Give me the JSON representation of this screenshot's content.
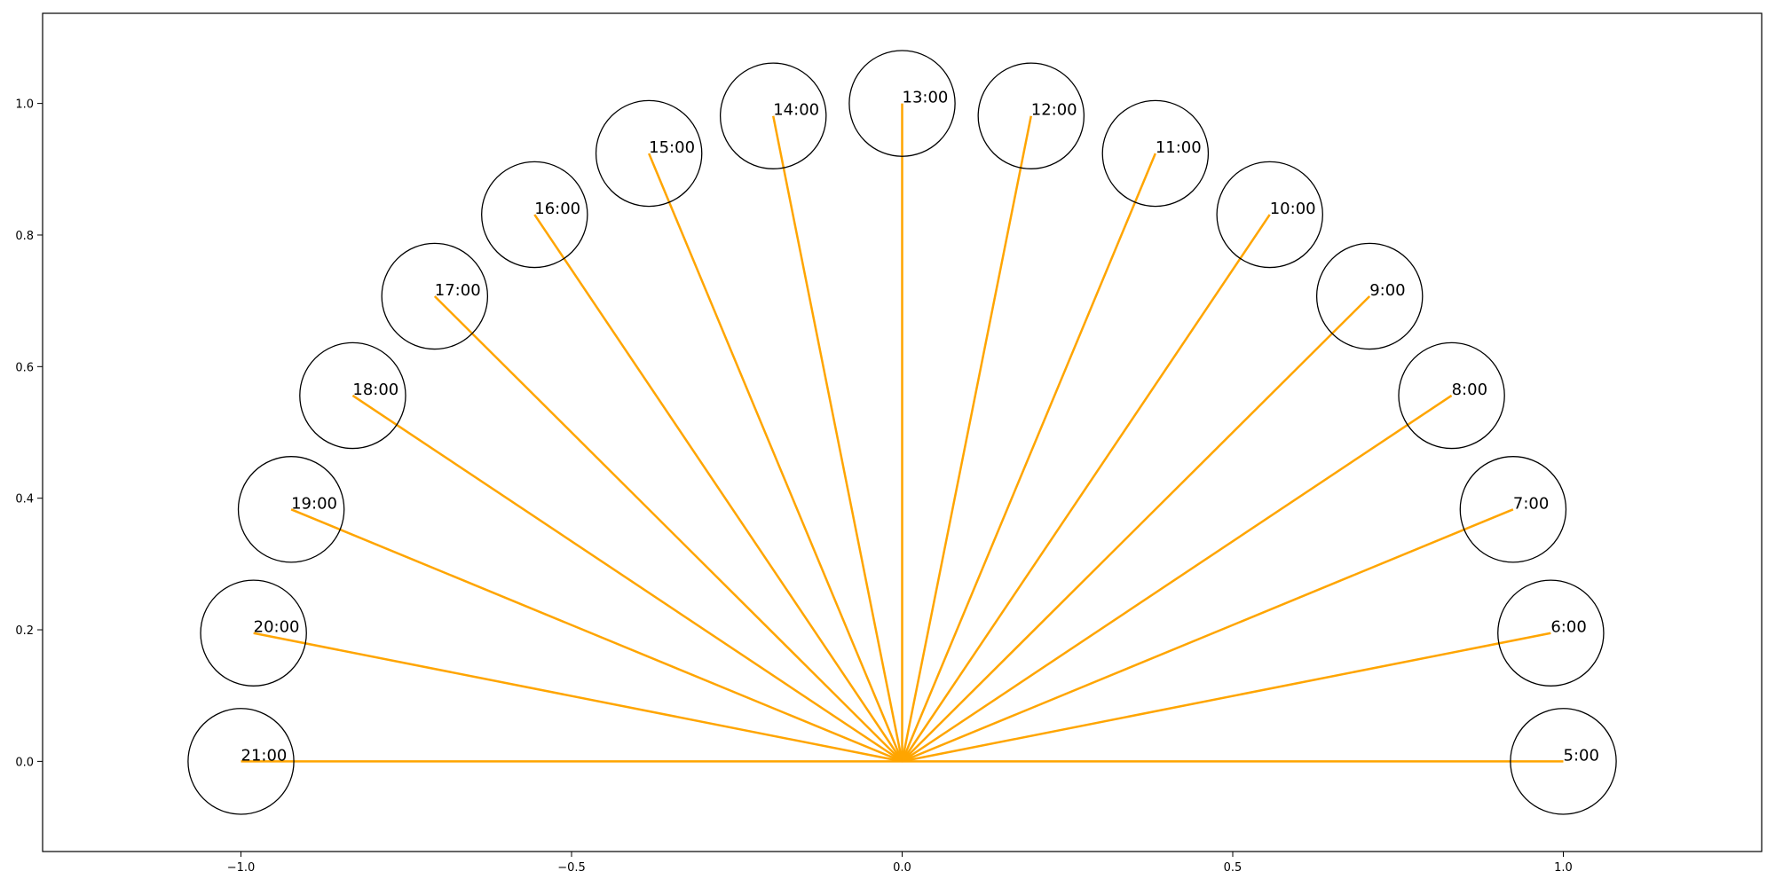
{
  "chart_data": {
    "type": "line",
    "title": "",
    "xlabel": "",
    "ylabel": "",
    "xlim": [
      -1.3,
      1.3
    ],
    "ylim": [
      -0.137,
      1.137
    ],
    "xticks": [
      -1.0,
      -0.5,
      0.0,
      0.5,
      1.0
    ],
    "xtick_labels": [
      "−1.0",
      "−0.5",
      "0.0",
      "0.5",
      "1.0"
    ],
    "yticks": [
      0.0,
      0.2,
      0.4,
      0.6,
      0.8,
      1.0
    ],
    "ytick_labels": [
      "0.0",
      "0.2",
      "0.4",
      "0.6",
      "0.8",
      "1.0"
    ],
    "grid": false,
    "legend": "none",
    "origin": [
      0,
      0
    ],
    "line_color": "#FFA500",
    "circle_color": "#000000",
    "circle_radius": 0.08,
    "points": [
      {
        "label": "5:00",
        "x": 1.0,
        "y": 0.0
      },
      {
        "label": "6:00",
        "x": 0.981,
        "y": 0.195
      },
      {
        "label": "7:00",
        "x": 0.924,
        "y": 0.383
      },
      {
        "label": "8:00",
        "x": 0.831,
        "y": 0.556
      },
      {
        "label": "9:00",
        "x": 0.707,
        "y": 0.707
      },
      {
        "label": "10:00",
        "x": 0.556,
        "y": 0.831
      },
      {
        "label": "11:00",
        "x": 0.383,
        "y": 0.924
      },
      {
        "label": "12:00",
        "x": 0.195,
        "y": 0.981
      },
      {
        "label": "13:00",
        "x": 0.0,
        "y": 1.0
      },
      {
        "label": "14:00",
        "x": -0.195,
        "y": 0.981
      },
      {
        "label": "15:00",
        "x": -0.383,
        "y": 0.924
      },
      {
        "label": "16:00",
        "x": -0.556,
        "y": 0.831
      },
      {
        "label": "17:00",
        "x": -0.707,
        "y": 0.707
      },
      {
        "label": "18:00",
        "x": -0.831,
        "y": 0.556
      },
      {
        "label": "19:00",
        "x": -0.924,
        "y": 0.383
      },
      {
        "label": "20:00",
        "x": -0.981,
        "y": 0.195
      },
      {
        "label": "21:00",
        "x": -1.0,
        "y": 0.0
      }
    ]
  }
}
